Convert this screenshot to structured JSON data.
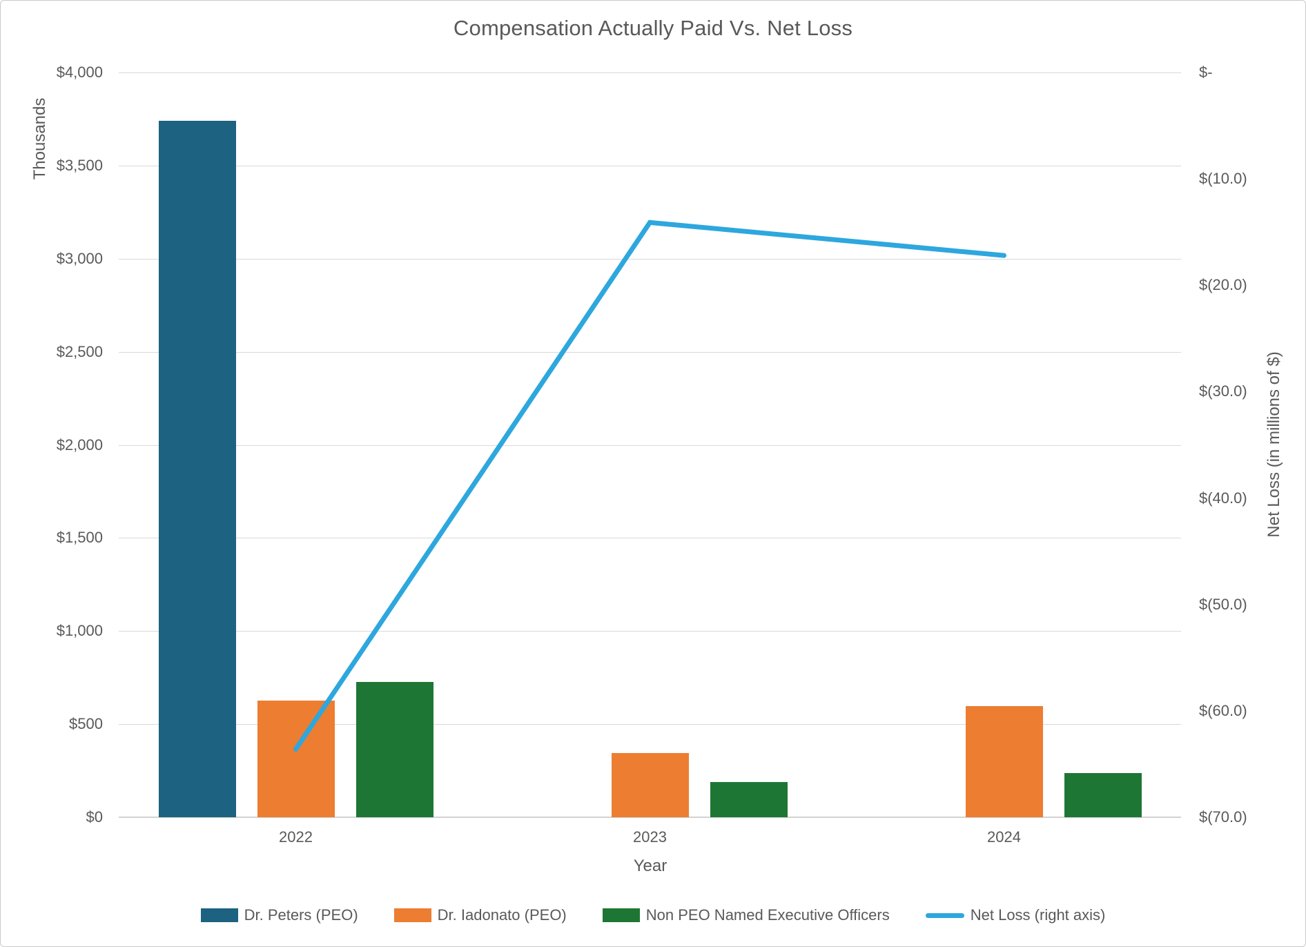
{
  "chart_data": {
    "type": "combo",
    "title": "Compensation Actually Paid Vs. Net Loss",
    "categories": [
      "2022",
      "2023",
      "2024"
    ],
    "bar_series": [
      {
        "name": "Dr. Peters (PEO)",
        "color": "#1d6280",
        "values": [
          3740,
          null,
          null
        ]
      },
      {
        "name": "Dr. Iadonato (PEO)",
        "color": "#ed7d31",
        "values": [
          625,
          345,
          598
        ]
      },
      {
        "name": "Non PEO Named Executive Officers",
        "color": "#1e7634",
        "values": [
          725,
          190,
          238
        ]
      }
    ],
    "line_series": {
      "name": "Net Loss (right axis)",
      "color": "#2da7de",
      "axis": "right",
      "values": [
        -63.6,
        -14.1,
        -17.2
      ]
    },
    "axes": {
      "left": {
        "unit_label": "Thousands",
        "min": 0,
        "max": 4000,
        "step": 500,
        "ticks": [
          "$4,000",
          "$3,500",
          "$3,000",
          "$2,500",
          "$2,000",
          "$1,500",
          "$1,000",
          "$500",
          "$0"
        ]
      },
      "right": {
        "title": "Net Loss (in millions of $)",
        "min": -70,
        "max": 0,
        "step": -10,
        "ticks": [
          "$-",
          "$(10.0)",
          "$(20.0)",
          "$(30.0)",
          "$(40.0)",
          "$(50.0)",
          "$(60.0)",
          "$(70.0)"
        ]
      },
      "x": {
        "title": "Year"
      }
    },
    "legend": {
      "position": "bottom",
      "entries": [
        "Dr. Peters (PEO)",
        "Dr. Iadonato (PEO)",
        "Non PEO Named Executive Officers",
        "Net Loss (right axis)"
      ]
    },
    "grid": true
  },
  "colors": {
    "text": "#595959",
    "grid": "#d9d9d9",
    "background": "#ffffff",
    "border": "#c9c9c9"
  }
}
